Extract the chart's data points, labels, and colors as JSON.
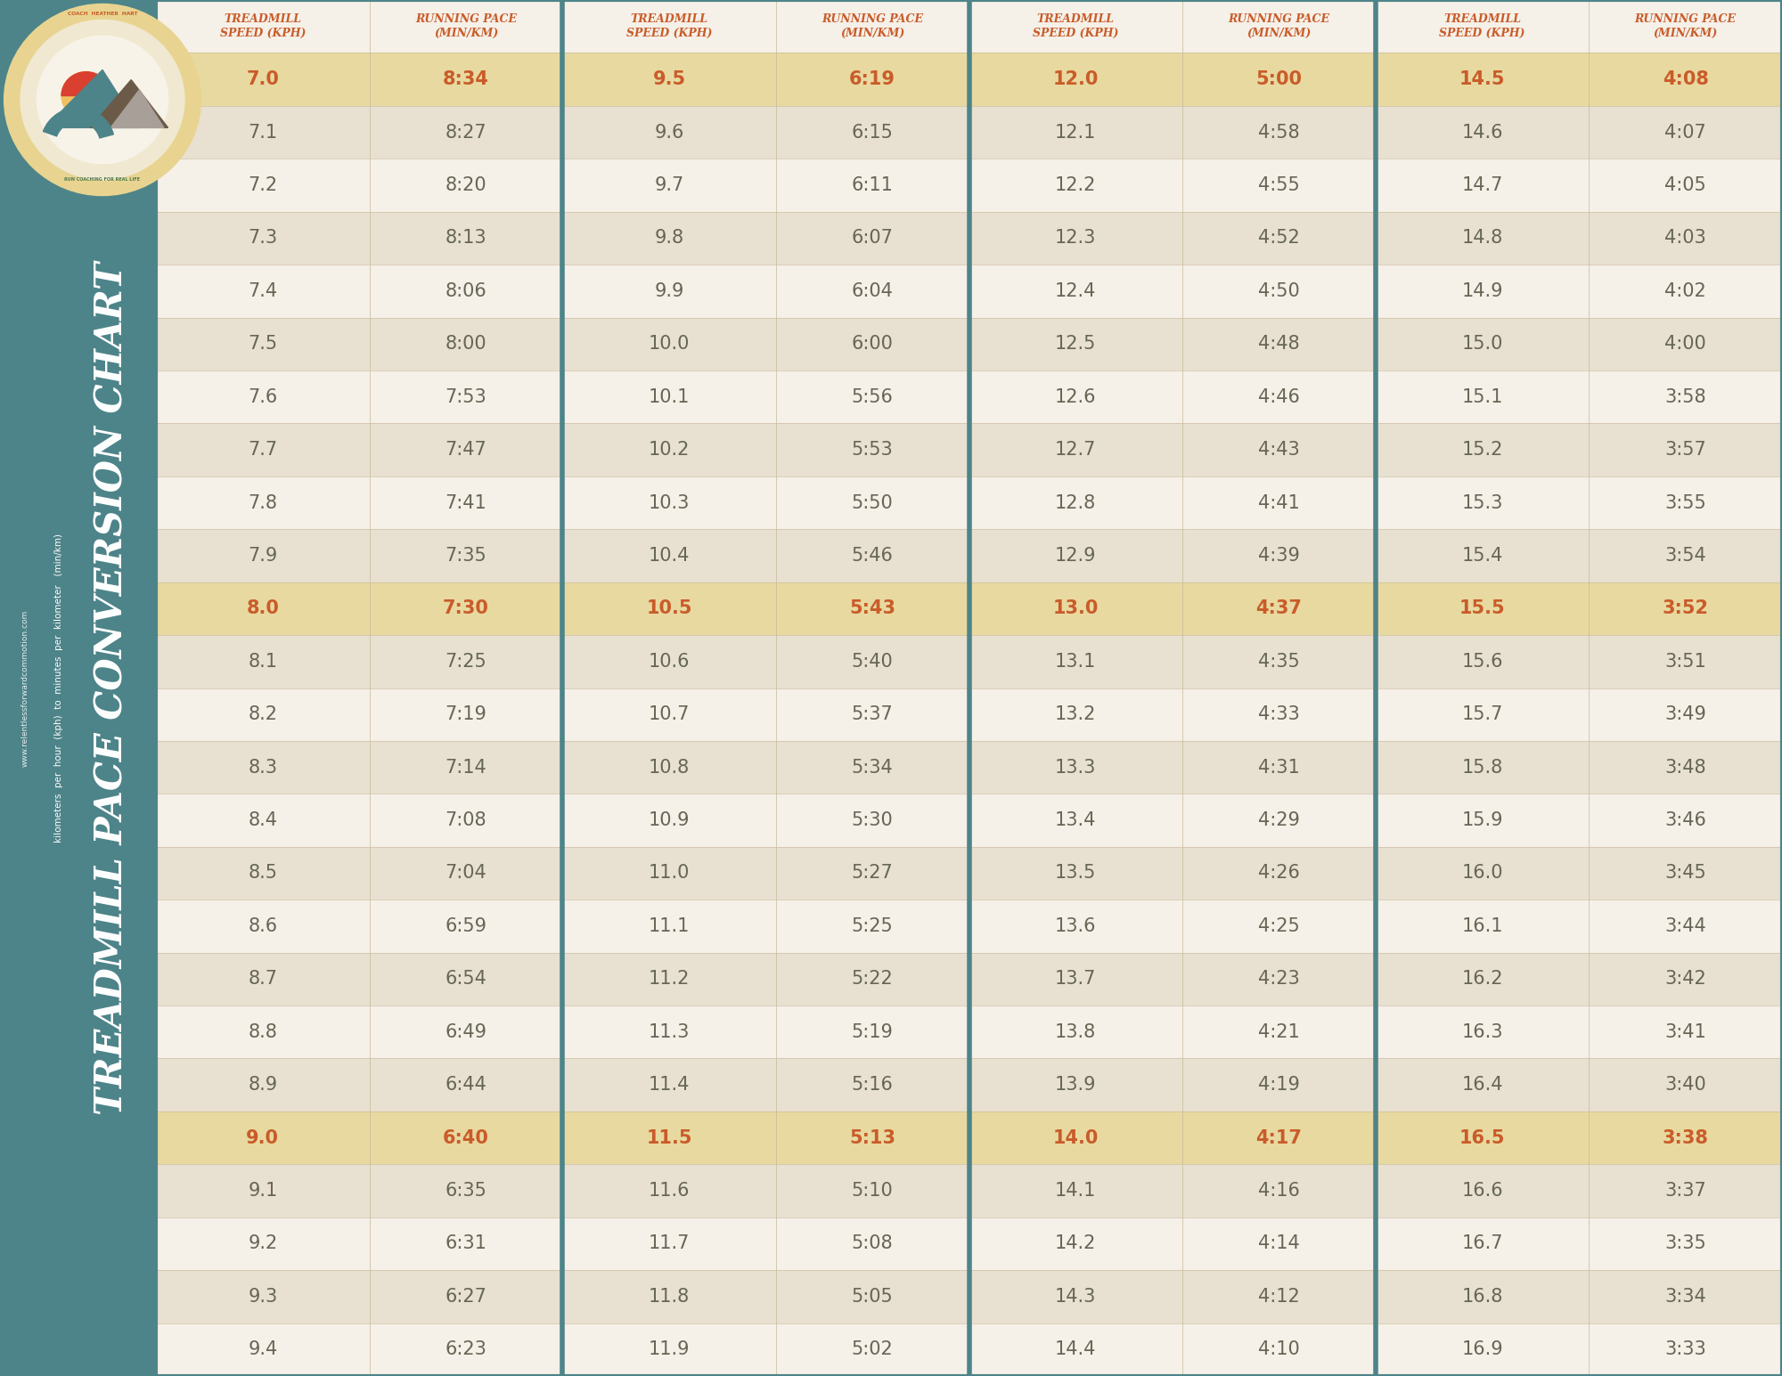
{
  "title": "TREADMILL PACE CONVERSION CHART",
  "subtitle": "kilometers  per  hour  (kph)  to  minutes  per  kilometer   (min/km)",
  "website": "www.relentlessforwardcommotion.com",
  "col_headers": [
    "TREADMILL\nSPEED (KPH)",
    "RUNNING PACE\n(MIN/KM)",
    "TREADMILL\nSPEED (KPH)",
    "RUNNING PACE\n(MIN/KM)",
    "TREADMILL\nSPEED (KPH)",
    "RUNNING PACE\n(MIN/KM)",
    "TREADMILL\nSPEED (KPH)",
    "RUNNING PACE\n(MIN/KM)"
  ],
  "bg_color": "#4d8489",
  "table_bg_light": "#f5f0e8",
  "table_bg_medium": "#e8e0d0",
  "header_bg": "#f5f0e8",
  "highlight_color": "#e8d9a0",
  "header_text_color": "#c95c2a",
  "cell_text_color": "#666655",
  "highlight_text_color": "#c95c2a",
  "col_divider_color": "#4d8489",
  "thin_divider_color": "#c8b898",
  "data": [
    [
      "7.0",
      "8:34",
      "9.5",
      "6:19",
      "12.0",
      "5:00",
      "14.5",
      "4:08"
    ],
    [
      "7.1",
      "8:27",
      "9.6",
      "6:15",
      "12.1",
      "4:58",
      "14.6",
      "4:07"
    ],
    [
      "7.2",
      "8:20",
      "9.7",
      "6:11",
      "12.2",
      "4:55",
      "14.7",
      "4:05"
    ],
    [
      "7.3",
      "8:13",
      "9.8",
      "6:07",
      "12.3",
      "4:52",
      "14.8",
      "4:03"
    ],
    [
      "7.4",
      "8:06",
      "9.9",
      "6:04",
      "12.4",
      "4:50",
      "14.9",
      "4:02"
    ],
    [
      "7.5",
      "8:00",
      "10.0",
      "6:00",
      "12.5",
      "4:48",
      "15.0",
      "4:00"
    ],
    [
      "7.6",
      "7:53",
      "10.1",
      "5:56",
      "12.6",
      "4:46",
      "15.1",
      "3:58"
    ],
    [
      "7.7",
      "7:47",
      "10.2",
      "5:53",
      "12.7",
      "4:43",
      "15.2",
      "3:57"
    ],
    [
      "7.8",
      "7:41",
      "10.3",
      "5:50",
      "12.8",
      "4:41",
      "15.3",
      "3:55"
    ],
    [
      "7.9",
      "7:35",
      "10.4",
      "5:46",
      "12.9",
      "4:39",
      "15.4",
      "3:54"
    ],
    [
      "8.0",
      "7:30",
      "10.5",
      "5:43",
      "13.0",
      "4:37",
      "15.5",
      "3:52"
    ],
    [
      "8.1",
      "7:25",
      "10.6",
      "5:40",
      "13.1",
      "4:35",
      "15.6",
      "3:51"
    ],
    [
      "8.2",
      "7:19",
      "10.7",
      "5:37",
      "13.2",
      "4:33",
      "15.7",
      "3:49"
    ],
    [
      "8.3",
      "7:14",
      "10.8",
      "5:34",
      "13.3",
      "4:31",
      "15.8",
      "3:48"
    ],
    [
      "8.4",
      "7:08",
      "10.9",
      "5:30",
      "13.4",
      "4:29",
      "15.9",
      "3:46"
    ],
    [
      "8.5",
      "7:04",
      "11.0",
      "5:27",
      "13.5",
      "4:26",
      "16.0",
      "3:45"
    ],
    [
      "8.6",
      "6:59",
      "11.1",
      "5:25",
      "13.6",
      "4:25",
      "16.1",
      "3:44"
    ],
    [
      "8.7",
      "6:54",
      "11.2",
      "5:22",
      "13.7",
      "4:23",
      "16.2",
      "3:42"
    ],
    [
      "8.8",
      "6:49",
      "11.3",
      "5:19",
      "13.8",
      "4:21",
      "16.3",
      "3:41"
    ],
    [
      "8.9",
      "6:44",
      "11.4",
      "5:16",
      "13.9",
      "4:19",
      "16.4",
      "3:40"
    ],
    [
      "9.0",
      "6:40",
      "11.5",
      "5:13",
      "14.0",
      "4:17",
      "16.5",
      "3:38"
    ],
    [
      "9.1",
      "6:35",
      "11.6",
      "5:10",
      "14.1",
      "4:16",
      "16.6",
      "3:37"
    ],
    [
      "9.2",
      "6:31",
      "11.7",
      "5:08",
      "14.2",
      "4:14",
      "16.7",
      "3:35"
    ],
    [
      "9.3",
      "6:27",
      "11.8",
      "5:05",
      "14.3",
      "4:12",
      "16.8",
      "3:34"
    ],
    [
      "9.4",
      "6:23",
      "11.9",
      "5:02",
      "14.4",
      "4:10",
      "16.9",
      "3:33"
    ]
  ],
  "highlight_rows": [
    0,
    10,
    20
  ],
  "figsize": [
    20.0,
    15.45
  ],
  "dpi": 100
}
